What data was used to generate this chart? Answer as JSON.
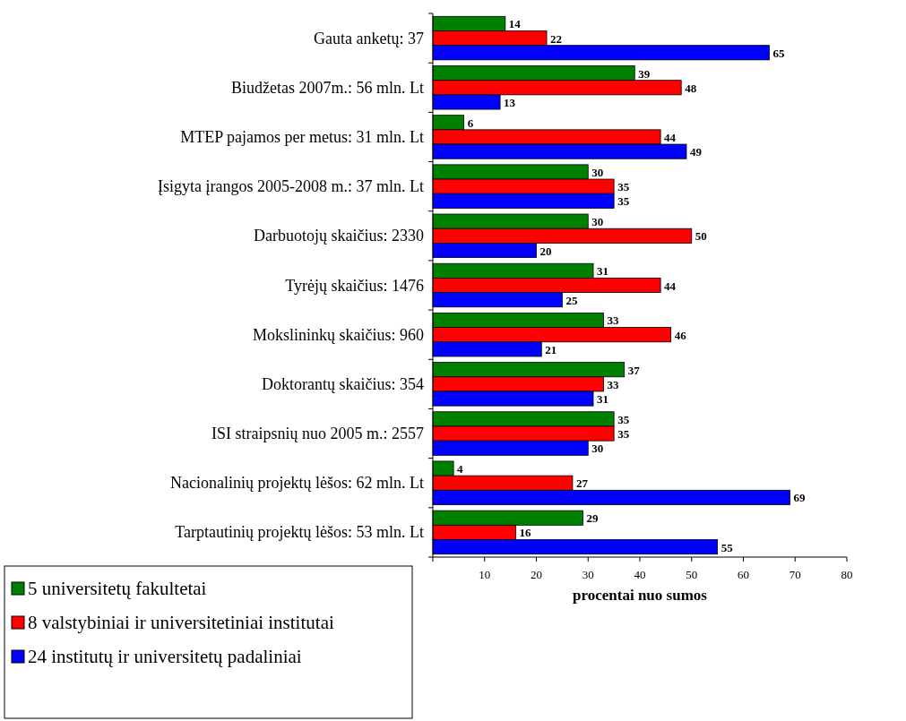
{
  "chart_data": {
    "type": "bar",
    "orientation": "horizontal",
    "xlabel": "procentai nuo sumos",
    "categories": [
      "Gauta anketų: 37",
      "Biudžetas 2007m.: 56 mln. Lt",
      "MTEP pajamos per metus: 31 mln. Lt",
      "Įsigyta įrangos 2005-2008 m.: 37 mln. Lt",
      "Darbuotojų skaičius: 2330",
      "Tyrėjų skaičius: 1476",
      "Mokslininkų skaičius: 960",
      "Doktorantų skaičius: 354",
      "ISI straipsnių nuo 2005 m.: 2557",
      "Nacionalinių projektų lėšos: 62 mln. Lt",
      "Tarptautinių projektų lėšos: 53 mln. Lt"
    ],
    "series": [
      {
        "name": "5 universitetų fakultetai",
        "color": "#008000",
        "values": [
          14,
          39,
          6,
          30,
          30,
          31,
          33,
          37,
          35,
          4,
          29
        ]
      },
      {
        "name": "8 valstybiniai ir universitetiniai institutai",
        "color": "#ff0000",
        "values": [
          22,
          48,
          44,
          35,
          50,
          44,
          46,
          33,
          35,
          27,
          16
        ]
      },
      {
        "name": "24 institutų ir universitetų padaliniai",
        "color": "#0000ff",
        "values": [
          65,
          13,
          49,
          35,
          20,
          25,
          21,
          31,
          30,
          69,
          55
        ]
      }
    ],
    "xlim": [
      0,
      80
    ],
    "xticks": [
      {
        "value": 0,
        "label": null
      },
      10,
      20,
      30,
      40,
      50,
      60,
      70,
      80
    ],
    "data_labels": true,
    "legend": "bottom left",
    "grid": false
  }
}
